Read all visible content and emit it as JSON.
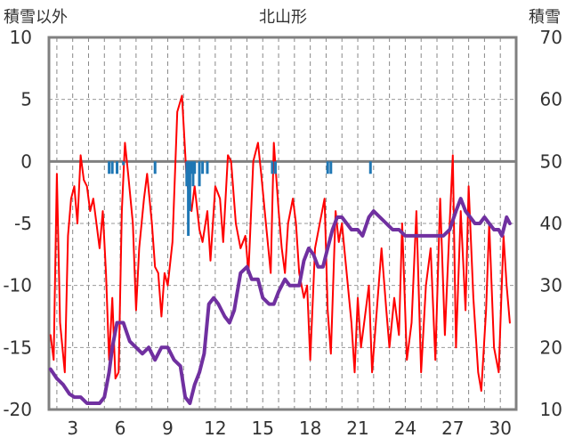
{
  "chart_data": {
    "type": "line",
    "title": "北山形",
    "ylabel_left": "積雪以外",
    "ylabel_right": "積雪",
    "ylim_left": [
      -20,
      10
    ],
    "ylim_right": [
      10,
      70
    ],
    "yticks_left": [
      "10",
      "5",
      "0",
      "-5",
      "-10",
      "-15",
      "-20"
    ],
    "yticks_right": [
      "70",
      "60",
      "50",
      "40",
      "30",
      "20",
      "10"
    ],
    "xlim": [
      1.5,
      31
    ],
    "xticks": [
      3,
      6,
      9,
      12,
      15,
      18,
      21,
      24,
      27,
      30
    ],
    "xtick_labels": [
      "3",
      "6",
      "9",
      "12",
      "15",
      "18",
      "21",
      "24",
      "27",
      "30"
    ],
    "grid": true,
    "colors": {
      "temperature": "#ff0000",
      "snow_depth": "#7030a0",
      "precipitation": "#1f77b4",
      "zero_line": "#808080",
      "frame": "#808080",
      "grid": "#999999"
    },
    "series": [
      {
        "axis": "left",
        "color": "#ff0000",
        "x": [
          1.6,
          1.8,
          2.0,
          2.2,
          2.5,
          2.7,
          2.9,
          3.1,
          3.3,
          3.5,
          3.7,
          3.9,
          4.1,
          4.3,
          4.5,
          4.7,
          4.9,
          5.1,
          5.3,
          5.5,
          5.7,
          5.9,
          6.1,
          6.3,
          6.5,
          6.8,
          7.0,
          7.2,
          7.5,
          7.7,
          8.0,
          8.2,
          8.4,
          8.6,
          8.8,
          9.0,
          9.3,
          9.6,
          9.9,
          10.2,
          10.5,
          10.7,
          11.0,
          11.2,
          11.5,
          11.7,
          12.0,
          12.3,
          12.5,
          12.8,
          13.0,
          13.3,
          13.6,
          13.9,
          14.1,
          14.4,
          14.7,
          14.9,
          15.2,
          15.5,
          15.7,
          16.0,
          16.2,
          16.4,
          16.6,
          16.9,
          17.1,
          17.3,
          17.6,
          17.8,
          18.0,
          18.3,
          18.6,
          18.9,
          19.1,
          19.3,
          19.6,
          19.8,
          20.0,
          20.6,
          20.8,
          21.0,
          21.2,
          21.4,
          21.7,
          21.9,
          22.2,
          22.5,
          22.8,
          23.0,
          23.3,
          23.6,
          23.8,
          24.1,
          24.4,
          24.7,
          25.0,
          25.3,
          25.6,
          25.9,
          26.2,
          26.5,
          26.8,
          27.0,
          27.2,
          27.5,
          27.8,
          28.0,
          28.3,
          28.6,
          28.8,
          29.1,
          29.3,
          29.6,
          29.9,
          30.2,
          30.4,
          30.6
        ],
        "values": [
          -14,
          -16,
          -1,
          -13,
          -17,
          -6,
          -3,
          -2,
          -5,
          0.5,
          -1.5,
          -2,
          -4,
          -3,
          -5,
          -7,
          -4,
          -9,
          -16,
          -11,
          -17.5,
          -17,
          -4,
          1.5,
          -1,
          -5,
          -12,
          -7,
          -3,
          -1,
          -5,
          -8.5,
          -9,
          -12.5,
          -9,
          -10,
          -6.5,
          4,
          5.3,
          -1.5,
          -4,
          -2,
          -5.5,
          -6.5,
          -4,
          -8,
          -2,
          -3,
          -6.5,
          0.5,
          0,
          -5,
          -7,
          -6,
          -9,
          0,
          1.5,
          -1,
          -5,
          -9,
          1.5,
          -4,
          -7,
          -9,
          -5,
          -3,
          -5,
          -9,
          -11,
          -10,
          -16,
          -7,
          -5,
          -3,
          -12,
          -15.5,
          -4,
          -6.5,
          -5,
          -13,
          -17,
          -11,
          -15,
          -13,
          -10,
          -17,
          -12,
          -7,
          -12,
          -15,
          -11,
          -14,
          -5,
          -16,
          -13,
          -4,
          -17,
          -10,
          -7,
          -16,
          -3,
          -14,
          -5,
          0.5,
          -15,
          -4,
          -12,
          -2,
          -11,
          -17,
          -18.5,
          -12,
          -5,
          -15,
          -17,
          -6,
          -10,
          -13
        ]
      },
      {
        "axis": "right",
        "color": "#7030a0",
        "x": [
          1.6,
          2.0,
          2.4,
          2.8,
          3.1,
          3.5,
          3.9,
          4.3,
          4.7,
          5.0,
          5.3,
          5.5,
          5.8,
          6.2,
          6.6,
          7.0,
          7.4,
          7.8,
          8.2,
          8.6,
          9.0,
          9.4,
          9.8,
          10.1,
          10.4,
          10.7,
          11.0,
          11.3,
          11.6,
          11.9,
          12.2,
          12.6,
          12.9,
          13.2,
          13.6,
          14.0,
          14.3,
          14.7,
          15.0,
          15.4,
          15.7,
          16.0,
          16.4,
          16.7,
          17.0,
          17.3,
          17.6,
          17.9,
          18.2,
          18.5,
          18.8,
          19.1,
          19.4,
          19.7,
          20.0,
          20.6,
          21.0,
          21.3,
          21.7,
          22.0,
          22.4,
          22.8,
          23.2,
          23.6,
          24.0,
          24.4,
          24.8,
          25.2,
          25.6,
          26.0,
          26.4,
          26.8,
          27.2,
          27.5,
          27.8,
          28.1,
          28.4,
          28.7,
          29.0,
          29.3,
          29.6,
          29.9,
          30.1,
          30.4,
          30.6
        ],
        "values": [
          16.5,
          15,
          14,
          12.5,
          12,
          12,
          11,
          11,
          11,
          12,
          16,
          20,
          24,
          24,
          21,
          20,
          19,
          20,
          18,
          20,
          20,
          18,
          17,
          12,
          11,
          14,
          16,
          19,
          27,
          28,
          27,
          25,
          24,
          26,
          32,
          33,
          31,
          31,
          28,
          27,
          27,
          29,
          31,
          30,
          30,
          30,
          34,
          36,
          35,
          33,
          33,
          36,
          39,
          41,
          41,
          39,
          39,
          38,
          41,
          42,
          41,
          40,
          39,
          39,
          38,
          38,
          38,
          38,
          38,
          38,
          38,
          39,
          42,
          44,
          42,
          41,
          40,
          40,
          41,
          40,
          39,
          39,
          38,
          41,
          40
        ]
      },
      {
        "axis": "left",
        "type": "bar",
        "color": "#1f77b4",
        "x": [
          5.3,
          5.5,
          5.8,
          6.2,
          8.2,
          10.2,
          10.3,
          10.4,
          10.5,
          10.6,
          10.7,
          11.0,
          11.2,
          11.5,
          15.6,
          15.8,
          19.1,
          19.3,
          21.8
        ],
        "values": [
          -1,
          -1,
          -1,
          -0.3,
          -1,
          -2,
          -6,
          -4,
          -1,
          -2,
          -1,
          -2,
          -1,
          -1,
          -1,
          -1,
          -1,
          -1,
          -1
        ]
      }
    ]
  }
}
